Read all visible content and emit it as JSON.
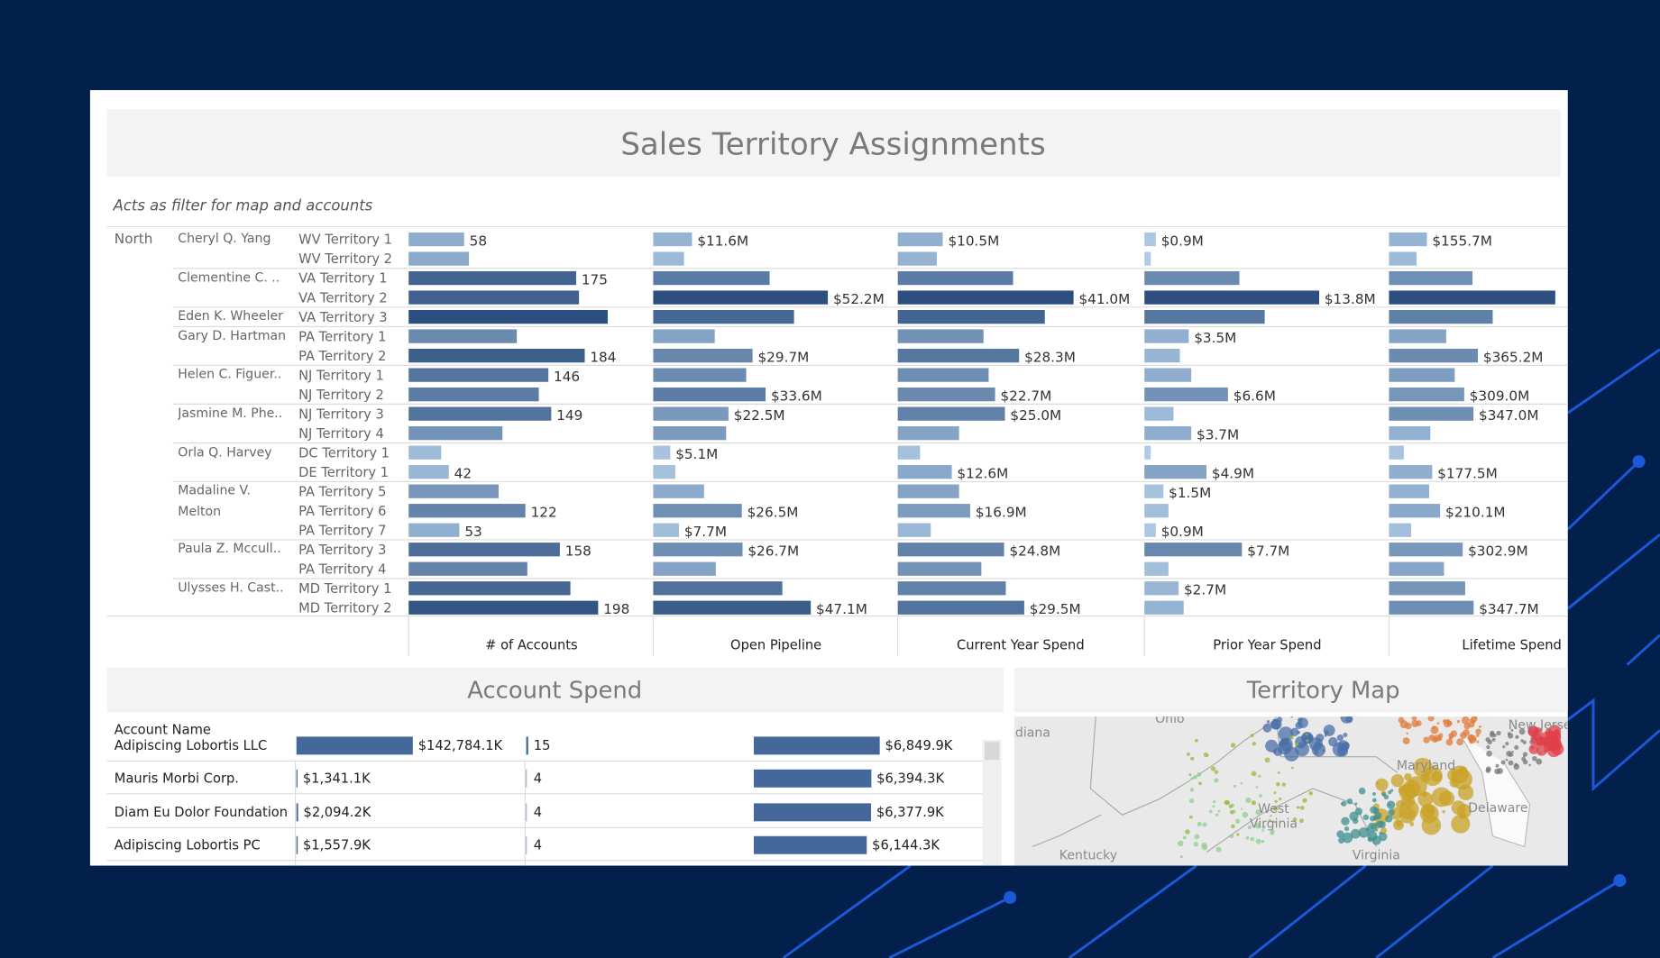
{
  "header": {
    "title": "Sales Territory Assignments",
    "subtitle": "Acts as filter for map and accounts"
  },
  "territory_table": {
    "region": "North",
    "reps": [
      {
        "name": "Cheryl Q. Yang",
        "territories": [
          "WV Territory 1",
          "WV Territory 2"
        ]
      },
      {
        "name": "Clementine C. ..",
        "territories": [
          "VA Territory 1",
          "VA Territory 2"
        ]
      },
      {
        "name": "Eden K. Wheeler",
        "territories": [
          "VA Territory 3"
        ]
      },
      {
        "name": "Gary D. Hartman",
        "territories": [
          "PA Territory 1",
          "PA Territory 2"
        ]
      },
      {
        "name": "Helen C. Figuer..",
        "territories": [
          "NJ Territory 1",
          "NJ Territory 2"
        ]
      },
      {
        "name": "Jasmine M. Phe..",
        "territories": [
          "NJ Territory 3",
          "NJ Territory 4"
        ]
      },
      {
        "name": "Orla Q. Harvey",
        "territories": [
          "DC Territory 1",
          "DE Territory 1"
        ]
      },
      {
        "name": "Madaline V. Melton",
        "territories": [
          "PA Territory 5",
          "PA Territory 6",
          "PA Territory 7"
        ]
      },
      {
        "name": "Paula Z. Mccull..",
        "territories": [
          "PA Territory 3",
          "PA Territory 4"
        ]
      },
      {
        "name": "Ulysses H. Cast..",
        "territories": [
          "MD Territory 1",
          "MD Territory 2"
        ]
      }
    ],
    "metrics": [
      {
        "name": "# of Accounts",
        "values": [
          58,
          63,
          175,
          178,
          208,
          113,
          184,
          146,
          136,
          149,
          98,
          34,
          42,
          94,
          122,
          53,
          158,
          124,
          169,
          198
        ],
        "value_labels": [
          "58",
          null,
          "175",
          null,
          null,
          null,
          "184",
          "146",
          null,
          "149",
          null,
          null,
          "42",
          null,
          "122",
          "53",
          "158",
          null,
          null,
          "198"
        ]
      },
      {
        "name": "Open Pipeline",
        "values": [
          11.6,
          9.2,
          34.8,
          52.2,
          42.1,
          18.4,
          29.7,
          27.8,
          33.6,
          22.5,
          21.8,
          5.1,
          6.6,
          15.2,
          26.5,
          7.7,
          26.7,
          18.7,
          38.6,
          47.1
        ],
        "value_labels": [
          "$11.6M",
          null,
          null,
          "$52.2M",
          null,
          null,
          "$29.7M",
          null,
          "$33.6M",
          "$22.5M",
          null,
          "$5.1M",
          null,
          null,
          "$26.5M",
          "$7.7M",
          "$26.7M",
          null,
          null,
          "$47.1M"
        ]
      },
      {
        "name": "Current Year Spend",
        "values": [
          10.5,
          9.1,
          26.9,
          41.0,
          34.3,
          20.0,
          28.3,
          21.2,
          22.7,
          25.0,
          14.3,
          5.2,
          12.6,
          14.3,
          16.9,
          7.7,
          24.8,
          19.5,
          25.2,
          29.5
        ],
        "value_labels": [
          "$10.5M",
          null,
          null,
          "$41.0M",
          null,
          null,
          "$28.3M",
          null,
          "$22.7M",
          "$25.0M",
          null,
          null,
          "$12.6M",
          null,
          "$16.9M",
          null,
          "$24.8M",
          null,
          null,
          "$29.5M"
        ]
      },
      {
        "name": "Prior Year Spend",
        "values": [
          0.9,
          0.5,
          7.5,
          13.8,
          9.5,
          3.5,
          2.8,
          3.7,
          6.6,
          2.3,
          3.7,
          0.5,
          4.9,
          1.5,
          1.9,
          0.9,
          7.7,
          1.9,
          2.7,
          3.1
        ],
        "value_labels": [
          "$0.9M",
          null,
          null,
          "$13.8M",
          null,
          "$3.5M",
          null,
          null,
          "$6.6M",
          null,
          "$3.7M",
          null,
          "$4.9M",
          "$1.5M",
          null,
          "$0.9M",
          "$7.7M",
          null,
          "$2.7M",
          null
        ]
      },
      {
        "name": "Lifetime Spend",
        "values": [
          155.7,
          113,
          343,
          683,
          426,
          235,
          365.2,
          270,
          309.0,
          347.0,
          170,
          61,
          177.5,
          165,
          210.1,
          91,
          302.9,
          226,
          313,
          347.7
        ],
        "value_labels": [
          "$155.7M",
          null,
          null,
          null,
          null,
          null,
          "$365.2M",
          null,
          "$309.0M",
          "$347.0M",
          null,
          null,
          "$177.5M",
          null,
          "$210.1M",
          null,
          "$302.9M",
          null,
          null,
          "$347.7M"
        ]
      }
    ]
  },
  "account_spend": {
    "title": "Account Spend",
    "column_header": "Account Name",
    "rows": [
      {
        "name": "Adipiscing Lobortis LLC",
        "values": [
          142784.1,
          15,
          6849.9
        ],
        "value_labels": [
          "$142,784.1K",
          "15",
          "$6,849.9K"
        ]
      },
      {
        "name": "Mauris Morbi Corp.",
        "values": [
          1341.1,
          4,
          6394.3
        ],
        "value_labels": [
          "$1,341.1K",
          "4",
          "$6,394.3K"
        ]
      },
      {
        "name": "Diam Eu Dolor Foundation",
        "values": [
          2094.2,
          4,
          6377.9
        ],
        "value_labels": [
          "$2,094.2K",
          "4",
          "$6,377.9K"
        ]
      },
      {
        "name": "Adipiscing Lobortis PC",
        "values": [
          1557.9,
          4,
          6144.3
        ],
        "value_labels": [
          "$1,557.9K",
          "4",
          "$6,144.3K"
        ]
      }
    ]
  },
  "territory_map": {
    "title": "Territory Map",
    "labels": [
      "Indiana",
      "Ohio",
      "West Virginia",
      "Kentucky",
      "Virginia",
      "Maryland",
      "Delaware",
      "New Jersey"
    ]
  }
}
